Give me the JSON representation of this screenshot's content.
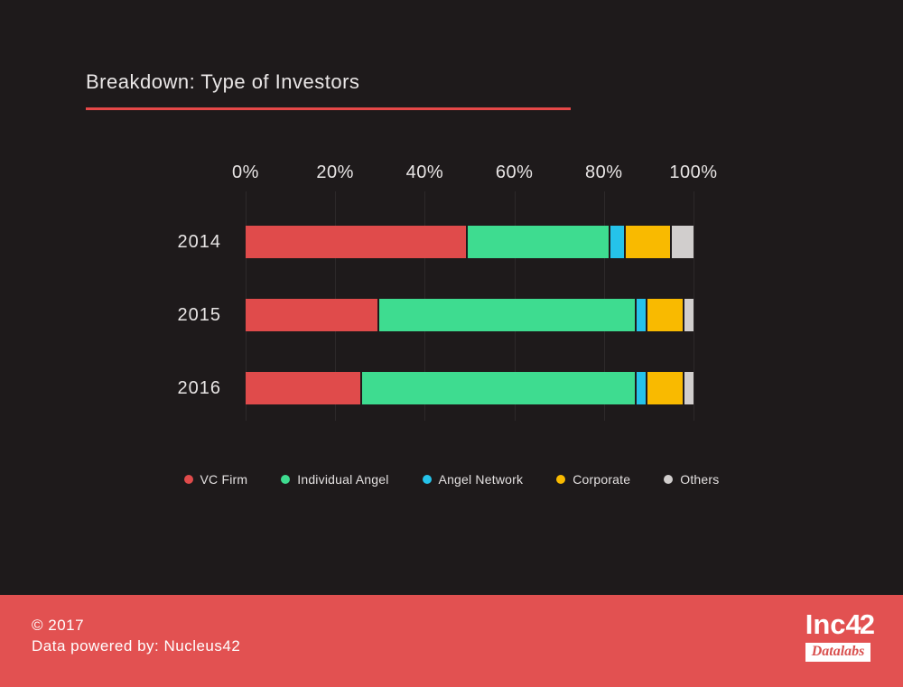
{
  "page": {
    "background": "#1e1a1b",
    "accent_red": "#e64848"
  },
  "chart": {
    "title": "Breakdown: Type of Investors"
  },
  "chart_data": {
    "type": "bar",
    "stacked": true,
    "orientation": "horizontal",
    "title": "Breakdown: Type of Investors",
    "categories": [
      "2014",
      "2015",
      "2016"
    ],
    "series": [
      {
        "name": "VC Firm",
        "color": "#e04b4b",
        "values": [
          50,
          30,
          26
        ]
      },
      {
        "name": "Individual Angel",
        "color": "#3edc90",
        "values": [
          32,
          58,
          62
        ]
      },
      {
        "name": "Angel Network",
        "color": "#25c3ea",
        "values": [
          3,
          2,
          2
        ]
      },
      {
        "name": "Corporate",
        "color": "#f9ba00",
        "values": [
          10,
          8,
          8
        ]
      },
      {
        "name": "Others",
        "color": "#d1cecd",
        "values": [
          5,
          2,
          2
        ]
      }
    ],
    "x_ticks": [
      "0%",
      "20%",
      "40%",
      "60%",
      "80%",
      "100%"
    ],
    "xlim": [
      0,
      100
    ],
    "grid": "vertical",
    "legend_position": "bottom",
    "units": "percent"
  },
  "footer": {
    "copyright": "© 2017",
    "powered_by": "Data powered by: Nucleus42",
    "background": "#e25151",
    "logo": {
      "brand": "Inc",
      "number": "42",
      "sub": "Datalabs"
    }
  }
}
